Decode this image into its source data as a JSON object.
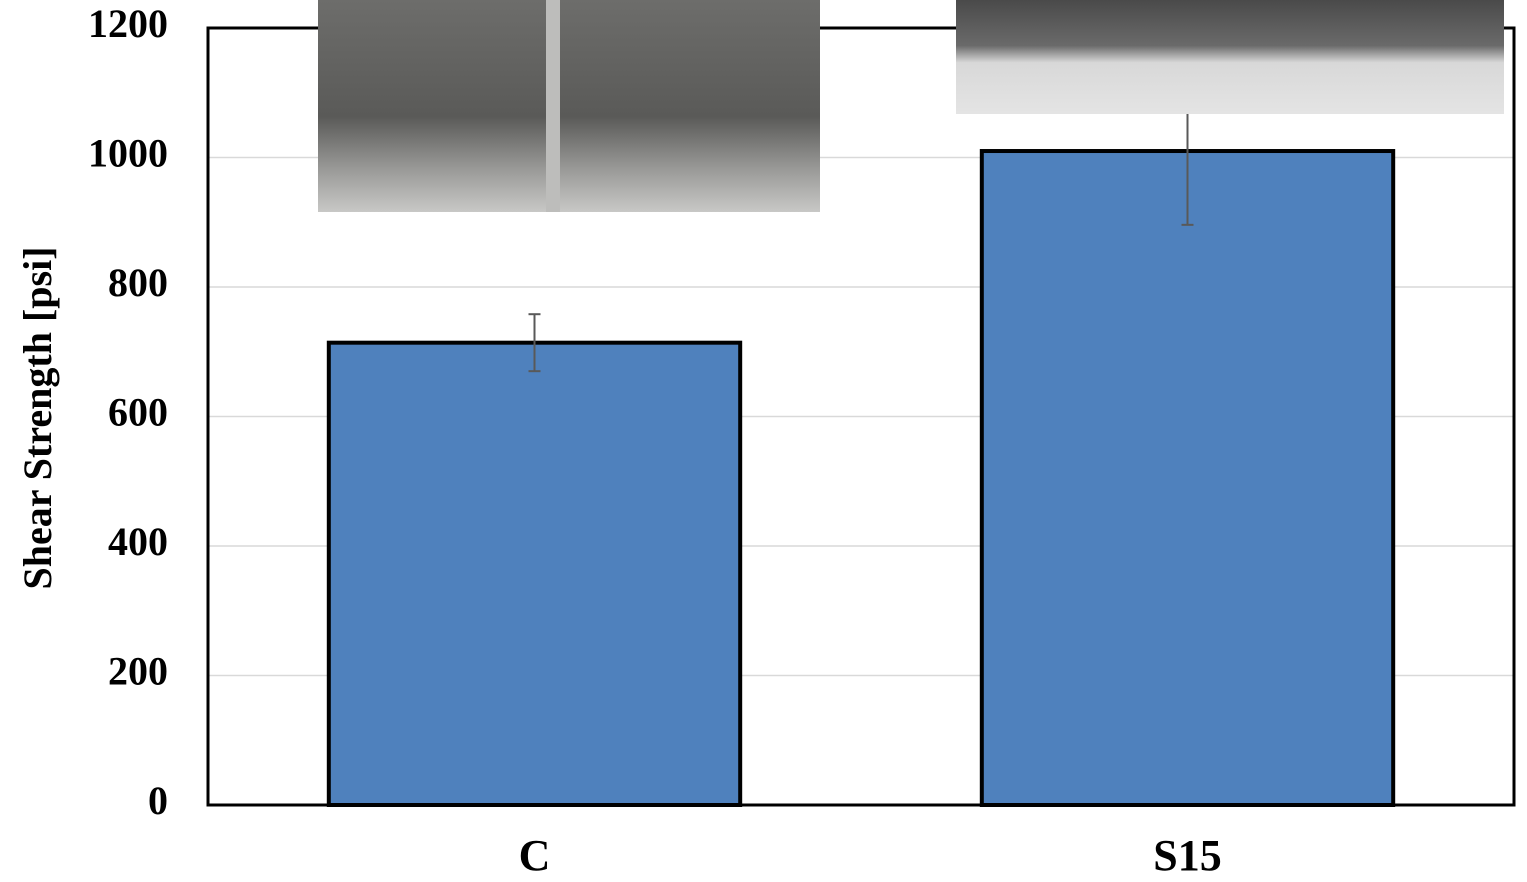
{
  "chart_data": {
    "type": "bar",
    "y_label": "Shear Strength [psi]",
    "categories": [
      "C",
      "S15"
    ],
    "values": [
      714,
      1010
    ],
    "errors": [
      44,
      114
    ],
    "color": "#4f81bd",
    "ylim": [
      0,
      1200
    ],
    "yticks": [
      0,
      200,
      400,
      600,
      800,
      1000,
      1200
    ],
    "grid": true
  }
}
